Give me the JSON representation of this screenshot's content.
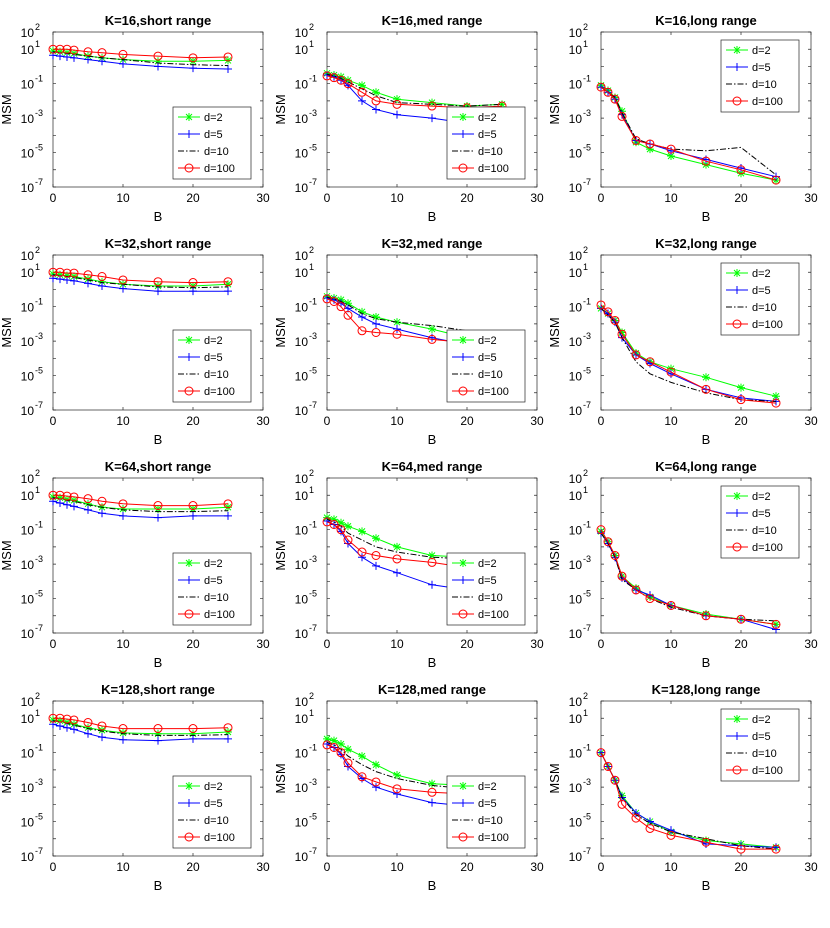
{
  "chart_data": {
    "type": "line",
    "layout": "4x3 grid",
    "xlabel": "B",
    "ylabel": "MSM",
    "xlim": [
      0,
      30
    ],
    "xticks": [
      "0",
      "10",
      "20",
      "30"
    ],
    "ylim_log10": [
      -7,
      2
    ],
    "yticks": [
      {
        "base": "10",
        "exp": "2",
        "value_log10": 2
      },
      {
        "base": "10",
        "exp": "1",
        "value_log10": 1
      },
      {
        "base": "10",
        "exp": "-1",
        "value_log10": -1
      },
      {
        "base": "10",
        "exp": "-3",
        "value_log10": -3
      },
      {
        "base": "10",
        "exp": "-5",
        "value_log10": -5
      },
      {
        "base": "10",
        "exp": "-7",
        "value_log10": -7
      }
    ],
    "x": [
      0,
      1,
      2,
      3,
      5,
      7,
      10,
      15,
      20,
      25
    ],
    "legend": [
      "d=2",
      "d=5",
      "d=10",
      "d=100"
    ],
    "series_styles": [
      {
        "name": "d=2",
        "color": "#00ff00",
        "marker": "asterisk",
        "dash": "solid"
      },
      {
        "name": "d=5",
        "color": "#0000ff",
        "marker": "plus",
        "dash": "solid"
      },
      {
        "name": "d=10",
        "color": "#000000",
        "marker": "none",
        "dash": "dashdot"
      },
      {
        "name": "d=100",
        "color": "#ff0000",
        "marker": "circle",
        "dash": "solid"
      }
    ],
    "panels": [
      {
        "title": "K=16,short range",
        "legend_position": "lower-right",
        "series": [
          {
            "name": "d=2",
            "values_log10": [
              0.9,
              0.85,
              0.8,
              0.75,
              0.6,
              0.5,
              0.4,
              0.3,
              0.3,
              0.35
            ]
          },
          {
            "name": "d=5",
            "values_log10": [
              0.65,
              0.6,
              0.55,
              0.5,
              0.4,
              0.3,
              0.15,
              0,
              -0.1,
              -0.15
            ]
          },
          {
            "name": "d=10",
            "values_log10": [
              0.85,
              0.8,
              0.75,
              0.7,
              0.6,
              0.5,
              0.4,
              0.2,
              0.1,
              0.05
            ]
          },
          {
            "name": "d=100",
            "values_log10": [
              1,
              1,
              1,
              0.95,
              0.85,
              0.8,
              0.7,
              0.6,
              0.5,
              0.55
            ]
          }
        ]
      },
      {
        "title": "K=16,med range",
        "legend_position": "lower-right",
        "series": [
          {
            "name": "d=2",
            "values_log10": [
              -0.4,
              -0.5,
              -0.6,
              -0.8,
              -1.1,
              -1.5,
              -1.9,
              -2.1,
              -2.3,
              -2.2
            ]
          },
          {
            "name": "d=5",
            "values_log10": [
              -0.5,
              -0.6,
              -0.8,
              -1.1,
              -2,
              -2.5,
              -2.8,
              -3.0,
              -3.3,
              -3.7
            ]
          },
          {
            "name": "d=10",
            "values_log10": [
              -0.45,
              -0.55,
              -0.7,
              -0.9,
              -1.3,
              -1.7,
              -2.1,
              -2.2,
              -2.3,
              -2.2
            ]
          },
          {
            "name": "d=100",
            "values_log10": [
              -0.55,
              -0.65,
              -0.8,
              -1.0,
              -1.5,
              -2.0,
              -2.2,
              -2.3,
              -2.4,
              -2.3
            ]
          }
        ]
      },
      {
        "title": "K=16,long range",
        "legend_position": "top-right",
        "series": [
          {
            "name": "d=2",
            "values_log10": [
              -1.1,
              -1.4,
              -1.8,
              -2.6,
              -4.4,
              -4.8,
              -5.2,
              -5.7,
              -6.2,
              -6.6
            ]
          },
          {
            "name": "d=5",
            "values_log10": [
              -1.2,
              -1.5,
              -1.9,
              -2.8,
              -4.3,
              -4.5,
              -4.9,
              -5.4,
              -5.9,
              -6.4
            ]
          },
          {
            "name": "d=10",
            "values_log10": [
              -1.2,
              -1.5,
              -1.8,
              -2.7,
              -4.2,
              -4.5,
              -4.8,
              -4.9,
              -4.7,
              -6.3
            ]
          },
          {
            "name": "d=100",
            "values_log10": [
              -1.2,
              -1.5,
              -1.9,
              -2.9,
              -4.3,
              -4.5,
              -4.8,
              -5.5,
              -6.0,
              -6.6
            ]
          }
        ]
      },
      {
        "title": "K=32,short range",
        "legend_position": "lower-right",
        "series": [
          {
            "name": "d=2",
            "values_log10": [
              0.9,
              0.85,
              0.8,
              0.75,
              0.6,
              0.45,
              0.3,
              0.2,
              0.2,
              0.3
            ]
          },
          {
            "name": "d=5",
            "values_log10": [
              0.65,
              0.6,
              0.55,
              0.5,
              0.35,
              0.2,
              0.05,
              -0.1,
              -0.1,
              -0.1
            ]
          },
          {
            "name": "d=10",
            "values_log10": [
              0.85,
              0.8,
              0.75,
              0.7,
              0.55,
              0.4,
              0.3,
              0.15,
              0.1,
              0.15
            ]
          },
          {
            "name": "d=100",
            "values_log10": [
              1,
              1,
              0.95,
              0.95,
              0.85,
              0.75,
              0.55,
              0.45,
              0.4,
              0.45
            ]
          }
        ]
      },
      {
        "title": "K=32,med range",
        "legend_position": "lower-right",
        "series": [
          {
            "name": "d=2",
            "values_log10": [
              -0.4,
              -0.5,
              -0.6,
              -0.8,
              -1.3,
              -1.6,
              -1.9,
              -2.3,
              -2.8,
              -3.2
            ]
          },
          {
            "name": "d=5",
            "values_log10": [
              -0.5,
              -0.6,
              -0.8,
              -1.1,
              -1.6,
              -2.0,
              -2.3,
              -2.8,
              -3.2,
              -3.5
            ]
          },
          {
            "name": "d=10",
            "values_log10": [
              -0.45,
              -0.55,
              -0.7,
              -0.9,
              -1.4,
              -1.7,
              -1.9,
              -2.1,
              -2.4,
              -2.5
            ]
          },
          {
            "name": "d=100",
            "values_log10": [
              -0.55,
              -0.7,
              -1.0,
              -1.5,
              -2.4,
              -2.5,
              -2.6,
              -2.9,
              -3.1,
              -3.3
            ]
          }
        ]
      },
      {
        "title": "K=32,long range",
        "legend_position": "top-right",
        "series": [
          {
            "name": "d=2",
            "values_log10": [
              -1.1,
              -1.4,
              -1.8,
              -2.5,
              -3.7,
              -4.2,
              -4.6,
              -5.1,
              -5.7,
              -6.2
            ]
          },
          {
            "name": "d=5",
            "values_log10": [
              -1.1,
              -1.4,
              -1.9,
              -2.8,
              -3.8,
              -4.3,
              -4.9,
              -5.8,
              -6.3,
              -6.5
            ]
          },
          {
            "name": "d=10",
            "values_log10": [
              -1.1,
              -1.5,
              -1.9,
              -2.8,
              -4.2,
              -4.9,
              -5.4,
              -6.0,
              -6.4,
              -6.5
            ]
          },
          {
            "name": "d=100",
            "values_log10": [
              -0.9,
              -1.3,
              -1.8,
              -2.6,
              -3.8,
              -4.2,
              -4.8,
              -5.8,
              -6.4,
              -6.6
            ]
          }
        ]
      },
      {
        "title": "K=64,short range",
        "legend_position": "lower-right",
        "series": [
          {
            "name": "d=2",
            "values_log10": [
              0.9,
              0.85,
              0.75,
              0.7,
              0.5,
              0.3,
              0.2,
              0.2,
              0.2,
              0.3
            ]
          },
          {
            "name": "d=5",
            "values_log10": [
              0.65,
              0.55,
              0.45,
              0.35,
              0.15,
              -0.05,
              -0.2,
              -0.3,
              -0.2,
              -0.2
            ]
          },
          {
            "name": "d=10",
            "values_log10": [
              0.85,
              0.8,
              0.7,
              0.65,
              0.45,
              0.3,
              0.15,
              0.05,
              0.05,
              0.1
            ]
          },
          {
            "name": "d=100",
            "values_log10": [
              1,
              1,
              0.95,
              0.9,
              0.8,
              0.65,
              0.5,
              0.4,
              0.4,
              0.5
            ]
          }
        ]
      },
      {
        "title": "K=64,med range",
        "legend_position": "lower-right",
        "series": [
          {
            "name": "d=2",
            "values_log10": [
              -0.3,
              -0.4,
              -0.6,
              -0.8,
              -1.1,
              -1.5,
              -2.0,
              -2.5,
              -2.6,
              -2.6
            ]
          },
          {
            "name": "d=5",
            "values_log10": [
              -0.5,
              -0.7,
              -1.1,
              -1.8,
              -2.6,
              -3.1,
              -3.5,
              -4.2,
              -4.5,
              -4.6
            ]
          },
          {
            "name": "d=10",
            "values_log10": [
              -0.4,
              -0.55,
              -0.8,
              -1.2,
              -1.6,
              -2.0,
              -2.3,
              -2.6,
              -2.7,
              -2.8
            ]
          },
          {
            "name": "d=100",
            "values_log10": [
              -0.55,
              -0.7,
              -1.0,
              -1.6,
              -2.3,
              -2.5,
              -2.7,
              -2.9,
              -3.2,
              -3.1
            ]
          }
        ]
      },
      {
        "title": "K=64,long range",
        "legend_position": "top-right",
        "series": [
          {
            "name": "d=2",
            "values_log10": [
              -1.1,
              -1.7,
              -2.5,
              -3.7,
              -4.4,
              -4.9,
              -5.4,
              -5.9,
              -6.2,
              -6.5
            ]
          },
          {
            "name": "d=5",
            "values_log10": [
              -1.2,
              -1.8,
              -2.6,
              -3.8,
              -4.5,
              -4.8,
              -5.4,
              -6.0,
              -6.2,
              -6.8
            ]
          },
          {
            "name": "d=10",
            "values_log10": [
              -1.2,
              -1.8,
              -2.6,
              -3.9,
              -4.5,
              -5.0,
              -5.5,
              -6.0,
              -6.2,
              -6.3
            ]
          },
          {
            "name": "d=100",
            "values_log10": [
              -1.0,
              -1.7,
              -2.5,
              -3.7,
              -4.5,
              -5.0,
              -5.4,
              -6.0,
              -6.2,
              -6.5
            ]
          }
        ]
      },
      {
        "title": "K=128,short range",
        "legend_position": "lower-right",
        "series": [
          {
            "name": "d=2",
            "values_log10": [
              0.9,
              0.85,
              0.75,
              0.65,
              0.45,
              0.3,
              0.15,
              0.1,
              0.1,
              0.2
            ]
          },
          {
            "name": "d=5",
            "values_log10": [
              0.65,
              0.55,
              0.45,
              0.35,
              0.1,
              -0.1,
              -0.25,
              -0.3,
              -0.2,
              -0.2
            ]
          },
          {
            "name": "d=10",
            "values_log10": [
              0.85,
              0.8,
              0.7,
              0.6,
              0.4,
              0.25,
              0.1,
              0,
              0,
              0.05
            ]
          },
          {
            "name": "d=100",
            "values_log10": [
              1,
              1,
              0.95,
              0.9,
              0.75,
              0.55,
              0.4,
              0.4,
              0.4,
              0.45
            ]
          }
        ]
      },
      {
        "title": "K=128,med range",
        "legend_position": "lower-right",
        "series": [
          {
            "name": "d=2",
            "values_log10": [
              -0.2,
              -0.3,
              -0.5,
              -0.8,
              -1.2,
              -1.7,
              -2.3,
              -2.8,
              -2.9,
              -2.8
            ]
          },
          {
            "name": "d=5",
            "values_log10": [
              -0.5,
              -0.7,
              -1.1,
              -1.8,
              -2.5,
              -3.0,
              -3.4,
              -3.9,
              -4.1,
              -4.3
            ]
          },
          {
            "name": "d=10",
            "values_log10": [
              -0.4,
              -0.55,
              -0.8,
              -1.2,
              -1.7,
              -2.1,
              -2.5,
              -2.9,
              -3.1,
              -3.3
            ]
          },
          {
            "name": "d=100",
            "values_log10": [
              -0.55,
              -0.7,
              -1.0,
              -1.6,
              -2.4,
              -2.7,
              -3.1,
              -3.3,
              -3.4,
              -3.4
            ]
          }
        ]
      },
      {
        "title": "K=128,long range",
        "legend_position": "top-right",
        "series": [
          {
            "name": "d=2",
            "values_log10": [
              -1.0,
              -1.8,
              -2.6,
              -3.5,
              -4.5,
              -5.0,
              -5.6,
              -6.1,
              -6.3,
              -6.5
            ]
          },
          {
            "name": "d=5",
            "values_log10": [
              -1.0,
              -1.8,
              -2.6,
              -3.6,
              -4.5,
              -5.0,
              -5.5,
              -6.3,
              -6.4,
              -6.5
            ]
          },
          {
            "name": "d=10",
            "values_log10": [
              -1.0,
              -1.8,
              -2.6,
              -3.6,
              -4.6,
              -5.1,
              -5.6,
              -6.0,
              -6.4,
              -6.6
            ]
          },
          {
            "name": "d=100",
            "values_log10": [
              -1.0,
              -1.8,
              -2.6,
              -4.0,
              -4.8,
              -5.4,
              -5.8,
              -6.2,
              -6.6,
              -6.6
            ]
          }
        ]
      }
    ]
  }
}
